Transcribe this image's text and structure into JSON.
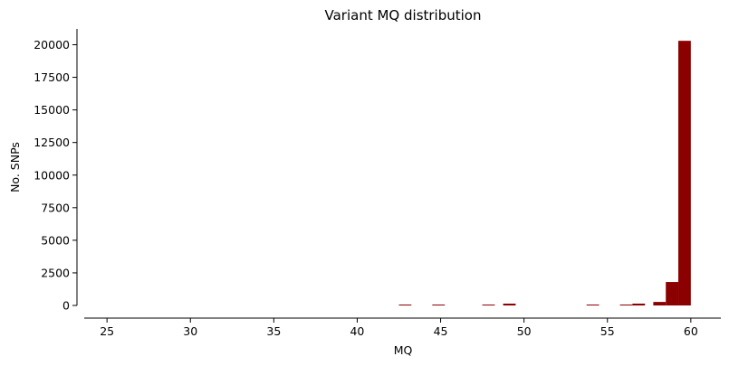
{
  "chart_data": {
    "type": "bar",
    "title": "Variant MQ distribution",
    "xlabel": "MQ",
    "ylabel": "No. SNPs",
    "xlim": [
      23.2,
      61.8
    ],
    "ylim": [
      0,
      21300
    ],
    "x_ticks": [
      25,
      30,
      35,
      40,
      45,
      50,
      55,
      60
    ],
    "y_ticks": [
      0,
      2500,
      5000,
      7500,
      10000,
      12500,
      15000,
      17500,
      20000
    ],
    "bar_color": "#8b0000",
    "grid": false,
    "bins": [
      {
        "x0": 42.5,
        "x1": 43.25,
        "value": 60
      },
      {
        "x0": 44.5,
        "x1": 45.25,
        "value": 60
      },
      {
        "x0": 47.5,
        "x1": 48.25,
        "value": 60
      },
      {
        "x0": 48.75,
        "x1": 49.5,
        "value": 140
      },
      {
        "x0": 53.75,
        "x1": 54.5,
        "value": 60
      },
      {
        "x0": 55.75,
        "x1": 56.5,
        "value": 60
      },
      {
        "x0": 56.5,
        "x1": 57.25,
        "value": 140
      },
      {
        "x0": 57.75,
        "x1": 58.5,
        "value": 270
      },
      {
        "x0": 58.5,
        "x1": 59.25,
        "value": 1800
      },
      {
        "x0": 59.25,
        "x1": 60.0,
        "value": 20300
      }
    ]
  }
}
